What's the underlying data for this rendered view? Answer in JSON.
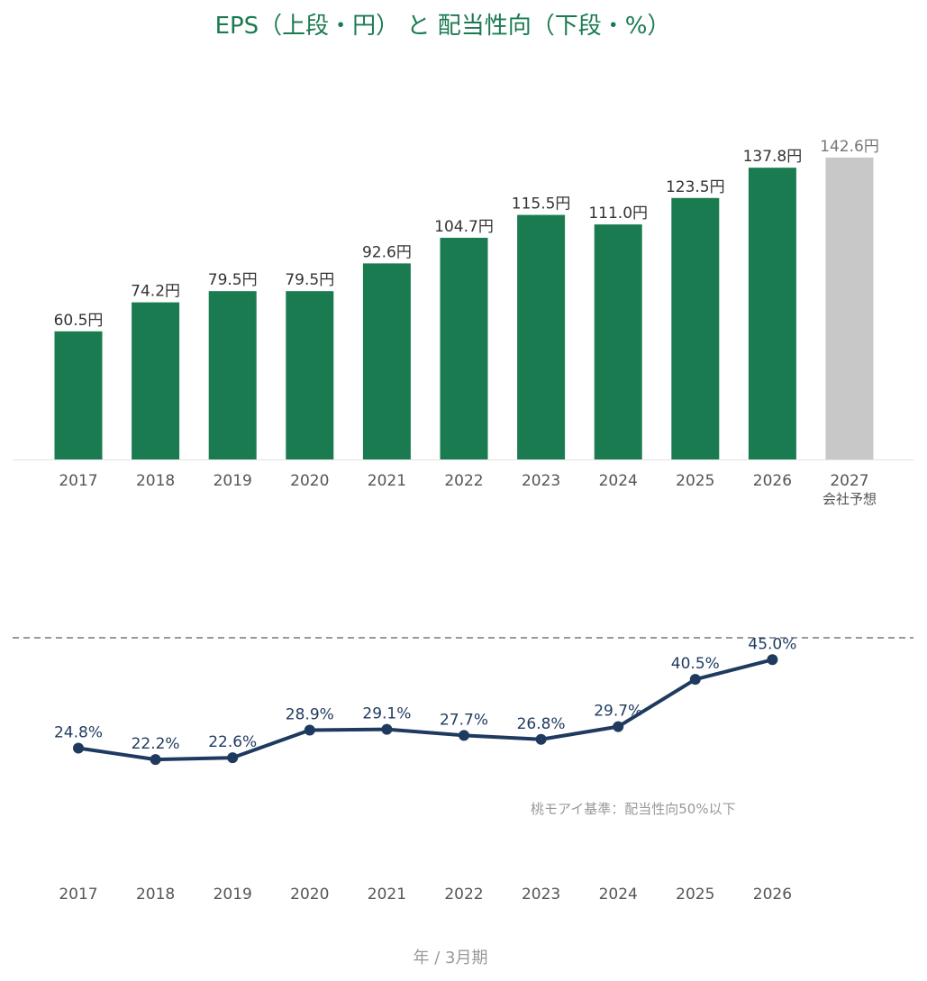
{
  "title": "EPS（上段・円） と 配当性向（下段・%）",
  "xlabel": "年 / 3月期",
  "note": "桃モアイ基準：配当性向50%以下",
  "colors": {
    "eps_actual": "#1b7b50",
    "eps_forecast": "#c8c8c8",
    "payout_line": "#1f3a5f",
    "eps_label": "#333333",
    "forecast_label": "#777777",
    "axis_tick": "#555555",
    "threshold_line": "#999999"
  },
  "chart_data": [
    {
      "type": "bar",
      "categories": [
        "2017",
        "2018",
        "2019",
        "2020",
        "2021",
        "2022",
        "2023",
        "2024",
        "2025",
        "2026",
        "2027"
      ],
      "category_sublabels": [
        "",
        "",
        "",
        "",
        "",
        "",
        "",
        "",
        "",
        "",
        "会社予想"
      ],
      "values": [
        60.5,
        74.2,
        79.5,
        79.5,
        92.6,
        104.7,
        115.5,
        111.0,
        123.5,
        137.8,
        142.6
      ],
      "value_labels": [
        "60.5円",
        "74.2円",
        "79.5円",
        "79.5円",
        "92.6円",
        "104.7円",
        "115.5円",
        "111.0円",
        "123.5円",
        "137.8円",
        "142.6円"
      ],
      "forecast": [
        false,
        false,
        false,
        false,
        false,
        false,
        false,
        false,
        false,
        false,
        true
      ],
      "unit": "円",
      "ylim": [
        0,
        150
      ]
    },
    {
      "type": "line",
      "categories": [
        "2017",
        "2018",
        "2019",
        "2020",
        "2021",
        "2022",
        "2023",
        "2024",
        "2025",
        "2026"
      ],
      "values": [
        24.8,
        22.2,
        22.6,
        28.9,
        29.1,
        27.7,
        26.8,
        29.7,
        40.5,
        45.0
      ],
      "value_labels": [
        "24.8%",
        "22.2%",
        "22.6%",
        "28.9%",
        "29.1%",
        "27.7%",
        "26.8%",
        "29.7%",
        "40.5%",
        "45.0%"
      ],
      "unit": "%",
      "threshold": 50,
      "threshold_style": "dashed"
    }
  ]
}
